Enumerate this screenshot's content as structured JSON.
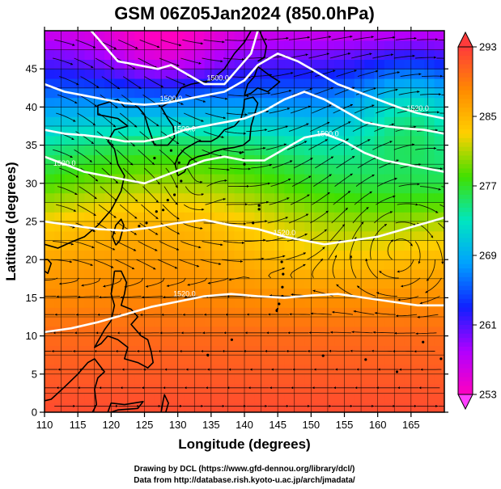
{
  "title": "GSM 06Z05Jan2024 (850.0hPa)",
  "xlabel": "Longitude (degrees)",
  "ylabel": "Latitude  (degrees)",
  "x_ticks": [
    "110",
    "115",
    "120",
    "125",
    "130",
    "135",
    "140",
    "145",
    "150",
    "155",
    "160",
    "165"
  ],
  "y_ticks": [
    "0",
    "5",
    "10",
    "15",
    "20",
    "25",
    "30",
    "35",
    "40",
    "45"
  ],
  "colorbar": {
    "labels": [
      "293",
      "285",
      "277",
      "269",
      "261",
      "253"
    ],
    "values": [
      293,
      285,
      277,
      269,
      261,
      253
    ],
    "colors": [
      "#ff3b3b",
      "#ff8a00",
      "#ffd000",
      "#40e000",
      "#00e6c0",
      "#00a0ff",
      "#1020ff",
      "#b000ff",
      "#ff00c0"
    ]
  },
  "contour_labels": [
    "1500.0",
    "1500.0",
    "1500.0",
    "1500.0",
    "1520.0",
    "1520.0",
    "1520.0",
    "1520.0"
  ],
  "credits": {
    "line1": "Drawing by DCL (https://www.gfd-dennou.org/library/dcl/)",
    "line2": "Data from http://database.rish.kyoto-u.ac.jp/arch/jmadata/"
  },
  "chart_data": {
    "type": "heatmap",
    "title": "GSM 06Z05Jan2024 (850.0hPa)",
    "xlabel": "Longitude (degrees)",
    "ylabel": "Latitude  (degrees)",
    "xlim": [
      110,
      170
    ],
    "ylim": [
      0,
      50
    ],
    "x_ticks": [
      110,
      115,
      120,
      125,
      130,
      135,
      140,
      145,
      150,
      155,
      160,
      165
    ],
    "y_ticks": [
      0,
      5,
      10,
      15,
      20,
      25,
      30,
      35,
      40,
      45
    ],
    "grid": true,
    "colorbar_range": [
      253,
      293
    ],
    "colorbar_ticks": [
      253,
      261,
      269,
      277,
      285,
      293
    ],
    "temperature_field_lat_profile": {
      "lat": [
        0,
        5,
        10,
        15,
        20,
        25,
        30,
        35,
        40,
        45,
        50
      ],
      "value": [
        292,
        291,
        290,
        288,
        286,
        283,
        278,
        274,
        268,
        262,
        256
      ]
    },
    "contour_values": [
      1500.0,
      1520.0
    ],
    "overlay": "streamlines"
  }
}
